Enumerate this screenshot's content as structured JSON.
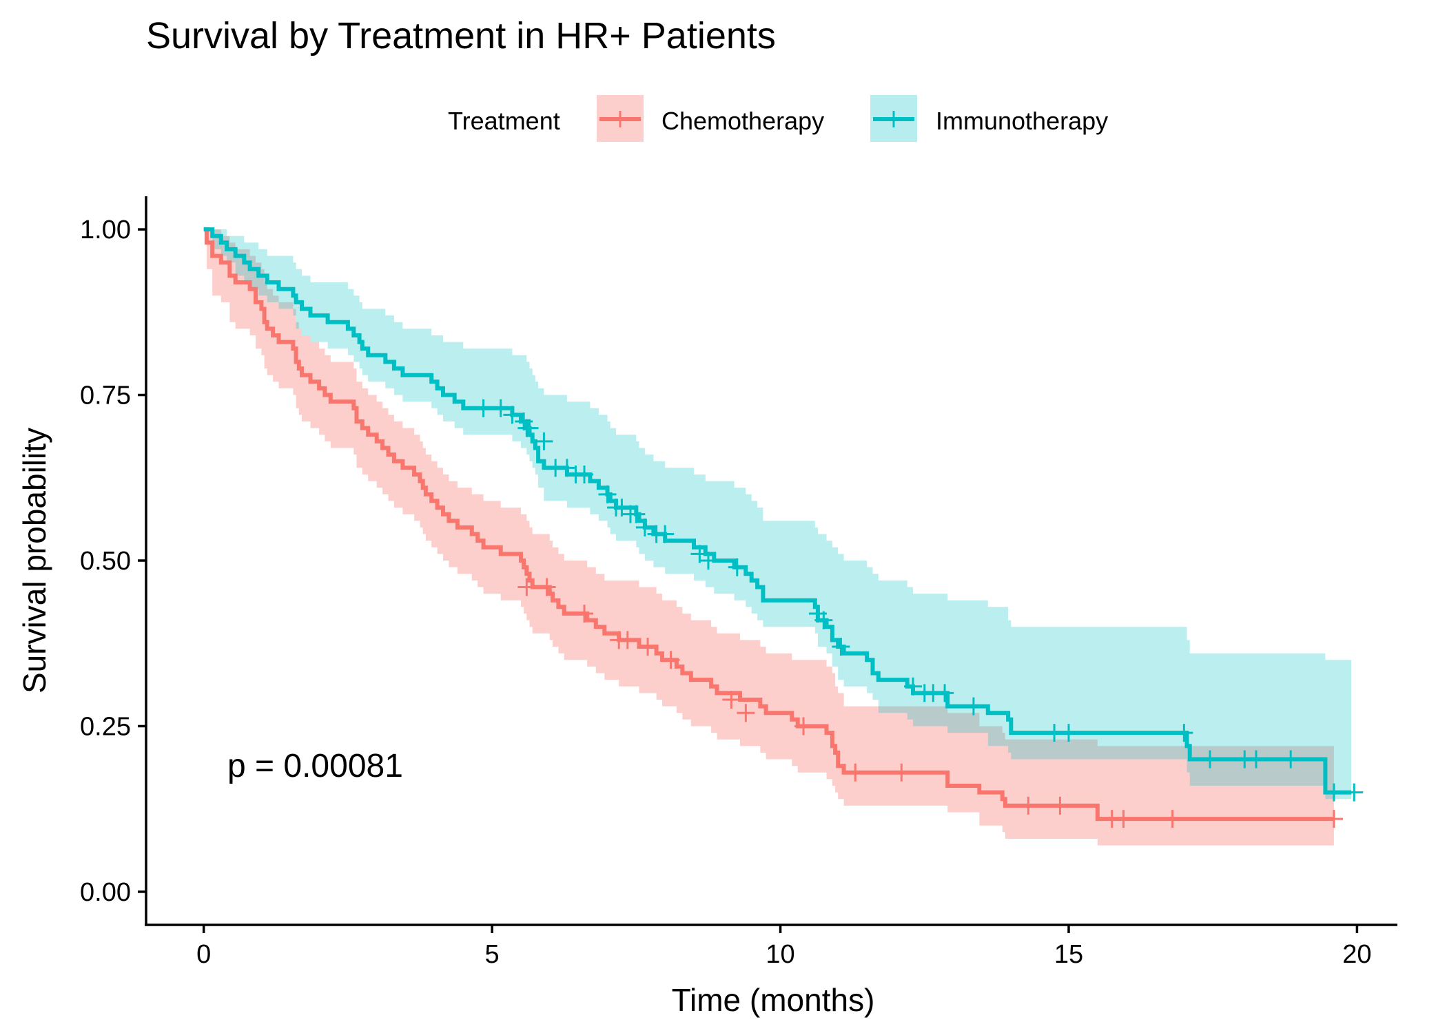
{
  "chart_data": {
    "type": "line",
    "title": "Survival by Treatment in HR+ Patients",
    "xlabel": "Time (months)",
    "ylabel": "Survival probability",
    "xlim": [
      -1,
      20.7
    ],
    "ylim": [
      -0.05,
      1.05
    ],
    "xticks": [
      0,
      5,
      10,
      15,
      20
    ],
    "yticks": [
      0.0,
      0.25,
      0.5,
      0.75,
      1.0
    ],
    "xtick_labels": [
      "0",
      "5",
      "10",
      "15",
      "20"
    ],
    "ytick_labels": [
      "0.00",
      "0.25",
      "0.50",
      "0.75",
      "1.00"
    ],
    "grid": false,
    "legend": {
      "title": "Treatment",
      "position": "top",
      "entries": [
        "Chemotherapy",
        "Immunotherapy"
      ]
    },
    "annotation": "p = 0.00081",
    "series": [
      {
        "name": "Chemotherapy",
        "color": "#F8766D",
        "band_color": "#F8766D",
        "steps": [
          [
            0.0,
            1.0
          ],
          [
            0.05,
            0.98
          ],
          [
            0.15,
            0.96
          ],
          [
            0.3,
            0.95
          ],
          [
            0.45,
            0.93
          ],
          [
            0.55,
            0.92
          ],
          [
            0.8,
            0.91
          ],
          [
            0.9,
            0.89
          ],
          [
            1.0,
            0.88
          ],
          [
            1.05,
            0.86
          ],
          [
            1.1,
            0.85
          ],
          [
            1.2,
            0.84
          ],
          [
            1.3,
            0.83
          ],
          [
            1.55,
            0.82
          ],
          [
            1.6,
            0.8
          ],
          [
            1.65,
            0.79
          ],
          [
            1.7,
            0.78
          ],
          [
            1.85,
            0.77
          ],
          [
            2.0,
            0.76
          ],
          [
            2.1,
            0.75
          ],
          [
            2.2,
            0.74
          ],
          [
            2.6,
            0.73
          ],
          [
            2.65,
            0.71
          ],
          [
            2.75,
            0.7
          ],
          [
            2.85,
            0.69
          ],
          [
            3.0,
            0.68
          ],
          [
            3.1,
            0.67
          ],
          [
            3.2,
            0.66
          ],
          [
            3.3,
            0.65
          ],
          [
            3.45,
            0.64
          ],
          [
            3.65,
            0.63
          ],
          [
            3.75,
            0.62
          ],
          [
            3.8,
            0.61
          ],
          [
            3.85,
            0.6
          ],
          [
            3.95,
            0.59
          ],
          [
            4.05,
            0.58
          ],
          [
            4.15,
            0.57
          ],
          [
            4.25,
            0.56
          ],
          [
            4.4,
            0.55
          ],
          [
            4.65,
            0.54
          ],
          [
            4.75,
            0.53
          ],
          [
            4.85,
            0.52
          ],
          [
            5.15,
            0.51
          ],
          [
            5.5,
            0.5
          ],
          [
            5.55,
            0.49
          ],
          [
            5.6,
            0.48
          ],
          [
            5.65,
            0.47
          ],
          [
            5.7,
            0.46
          ],
          [
            6.0,
            0.45
          ],
          [
            6.05,
            0.44
          ],
          [
            6.15,
            0.43
          ],
          [
            6.25,
            0.42
          ],
          [
            6.65,
            0.41
          ],
          [
            6.8,
            0.4
          ],
          [
            6.95,
            0.39
          ],
          [
            7.2,
            0.38
          ],
          [
            7.55,
            0.37
          ],
          [
            7.85,
            0.36
          ],
          [
            7.95,
            0.35
          ],
          [
            8.2,
            0.34
          ],
          [
            8.3,
            0.33
          ],
          [
            8.45,
            0.32
          ],
          [
            8.8,
            0.31
          ],
          [
            8.9,
            0.3
          ],
          [
            9.3,
            0.29
          ],
          [
            9.65,
            0.28
          ],
          [
            9.75,
            0.27
          ],
          [
            10.2,
            0.26
          ],
          [
            10.3,
            0.25
          ],
          [
            10.8,
            0.24
          ],
          [
            10.9,
            0.22
          ],
          [
            10.95,
            0.21
          ],
          [
            11.0,
            0.19
          ],
          [
            11.1,
            0.18
          ],
          [
            12.9,
            0.16
          ],
          [
            13.45,
            0.15
          ],
          [
            13.85,
            0.14
          ],
          [
            13.9,
            0.13
          ],
          [
            15.5,
            0.11
          ],
          [
            19.6,
            0.11
          ]
        ],
        "lower": [
          1.0,
          0.94,
          0.9,
          0.89,
          0.86,
          0.85,
          0.84,
          0.82,
          0.81,
          0.79,
          0.78,
          0.77,
          0.76,
          0.75,
          0.73,
          0.72,
          0.71,
          0.7,
          0.69,
          0.68,
          0.67,
          0.66,
          0.64,
          0.63,
          0.62,
          0.61,
          0.6,
          0.59,
          0.58,
          0.57,
          0.56,
          0.55,
          0.54,
          0.53,
          0.52,
          0.51,
          0.5,
          0.49,
          0.48,
          0.47,
          0.46,
          0.45,
          0.44,
          0.43,
          0.42,
          0.41,
          0.4,
          0.39,
          0.38,
          0.37,
          0.36,
          0.35,
          0.34,
          0.33,
          0.32,
          0.31,
          0.3,
          0.29,
          0.28,
          0.27,
          0.26,
          0.25,
          0.24,
          0.23,
          0.22,
          0.21,
          0.2,
          0.19,
          0.18,
          0.17,
          0.16,
          0.15,
          0.14,
          0.13,
          0.12,
          0.1,
          0.09,
          0.08,
          0.07,
          0.05,
          0.05
        ],
        "upper": [
          1.0,
          1.0,
          1.0,
          0.99,
          0.98,
          0.97,
          0.96,
          0.95,
          0.94,
          0.92,
          0.91,
          0.9,
          0.89,
          0.88,
          0.86,
          0.85,
          0.84,
          0.83,
          0.82,
          0.81,
          0.8,
          0.79,
          0.77,
          0.76,
          0.75,
          0.74,
          0.73,
          0.72,
          0.71,
          0.7,
          0.69,
          0.68,
          0.67,
          0.66,
          0.65,
          0.64,
          0.63,
          0.62,
          0.61,
          0.6,
          0.6,
          0.59,
          0.58,
          0.57,
          0.57,
          0.56,
          0.55,
          0.54,
          0.53,
          0.52,
          0.51,
          0.5,
          0.49,
          0.48,
          0.47,
          0.47,
          0.46,
          0.45,
          0.44,
          0.43,
          0.42,
          0.41,
          0.4,
          0.39,
          0.38,
          0.37,
          0.36,
          0.35,
          0.35,
          0.34,
          0.33,
          0.31,
          0.3,
          0.28,
          0.27,
          0.25,
          0.24,
          0.23,
          0.22,
          0.19,
          0.19
        ],
        "censored": [
          [
            5.6,
            0.46
          ],
          [
            5.95,
            0.46
          ],
          [
            6.6,
            0.42
          ],
          [
            7.2,
            0.38
          ],
          [
            7.35,
            0.38
          ],
          [
            7.7,
            0.37
          ],
          [
            8.1,
            0.35
          ],
          [
            9.15,
            0.29
          ],
          [
            9.4,
            0.27
          ],
          [
            10.4,
            0.25
          ],
          [
            11.3,
            0.18
          ],
          [
            12.1,
            0.18
          ],
          [
            14.3,
            0.13
          ],
          [
            14.85,
            0.13
          ],
          [
            15.75,
            0.11
          ],
          [
            15.95,
            0.11
          ],
          [
            16.8,
            0.11
          ],
          [
            19.6,
            0.11
          ]
        ]
      },
      {
        "name": "Immunotherapy",
        "color": "#00BFC4",
        "band_color": "#00BFC4",
        "steps": [
          [
            0.0,
            1.0
          ],
          [
            0.15,
            0.99
          ],
          [
            0.3,
            0.98
          ],
          [
            0.4,
            0.97
          ],
          [
            0.55,
            0.96
          ],
          [
            0.7,
            0.95
          ],
          [
            0.8,
            0.94
          ],
          [
            0.95,
            0.93
          ],
          [
            1.1,
            0.92
          ],
          [
            1.3,
            0.91
          ],
          [
            1.55,
            0.9
          ],
          [
            1.6,
            0.89
          ],
          [
            1.7,
            0.88
          ],
          [
            1.85,
            0.87
          ],
          [
            2.15,
            0.86
          ],
          [
            2.5,
            0.85
          ],
          [
            2.6,
            0.84
          ],
          [
            2.7,
            0.83
          ],
          [
            2.75,
            0.82
          ],
          [
            2.85,
            0.81
          ],
          [
            3.15,
            0.8
          ],
          [
            3.3,
            0.79
          ],
          [
            3.45,
            0.78
          ],
          [
            3.95,
            0.77
          ],
          [
            4.05,
            0.76
          ],
          [
            4.15,
            0.75
          ],
          [
            4.35,
            0.74
          ],
          [
            4.5,
            0.73
          ],
          [
            5.35,
            0.72
          ],
          [
            5.5,
            0.71
          ],
          [
            5.6,
            0.7
          ],
          [
            5.65,
            0.69
          ],
          [
            5.7,
            0.68
          ],
          [
            5.75,
            0.67
          ],
          [
            5.8,
            0.65
          ],
          [
            5.9,
            0.64
          ],
          [
            6.3,
            0.63
          ],
          [
            6.7,
            0.62
          ],
          [
            6.85,
            0.61
          ],
          [
            7.0,
            0.6
          ],
          [
            7.05,
            0.59
          ],
          [
            7.15,
            0.58
          ],
          [
            7.5,
            0.57
          ],
          [
            7.55,
            0.56
          ],
          [
            7.65,
            0.55
          ],
          [
            7.8,
            0.54
          ],
          [
            8.0,
            0.53
          ],
          [
            8.5,
            0.52
          ],
          [
            8.7,
            0.51
          ],
          [
            8.85,
            0.5
          ],
          [
            9.2,
            0.49
          ],
          [
            9.4,
            0.48
          ],
          [
            9.5,
            0.47
          ],
          [
            9.6,
            0.46
          ],
          [
            9.7,
            0.44
          ],
          [
            10.6,
            0.43
          ],
          [
            10.65,
            0.41
          ],
          [
            10.8,
            0.4
          ],
          [
            10.9,
            0.38
          ],
          [
            11.0,
            0.37
          ],
          [
            11.1,
            0.36
          ],
          [
            11.5,
            0.35
          ],
          [
            11.6,
            0.33
          ],
          [
            11.7,
            0.32
          ],
          [
            12.2,
            0.31
          ],
          [
            12.3,
            0.3
          ],
          [
            12.9,
            0.28
          ],
          [
            13.6,
            0.27
          ],
          [
            13.95,
            0.26
          ],
          [
            14.0,
            0.24
          ],
          [
            17.05,
            0.22
          ],
          [
            17.1,
            0.2
          ],
          [
            19.45,
            0.15
          ],
          [
            19.9,
            0.15
          ]
        ],
        "lower": [
          1.0,
          0.97,
          0.96,
          0.95,
          0.93,
          0.92,
          0.91,
          0.9,
          0.89,
          0.88,
          0.87,
          0.85,
          0.84,
          0.83,
          0.82,
          0.81,
          0.8,
          0.79,
          0.78,
          0.77,
          0.76,
          0.75,
          0.74,
          0.73,
          0.72,
          0.71,
          0.7,
          0.69,
          0.68,
          0.67,
          0.66,
          0.65,
          0.64,
          0.63,
          0.61,
          0.59,
          0.58,
          0.57,
          0.56,
          0.55,
          0.54,
          0.53,
          0.52,
          0.51,
          0.5,
          0.49,
          0.48,
          0.47,
          0.46,
          0.45,
          0.44,
          0.43,
          0.42,
          0.41,
          0.4,
          0.39,
          0.37,
          0.36,
          0.34,
          0.32,
          0.31,
          0.3,
          0.29,
          0.27,
          0.26,
          0.25,
          0.24,
          0.22,
          0.21,
          0.2,
          0.18,
          0.16,
          0.14,
          0.07,
          0.07
        ],
        "upper": [
          1.0,
          1.0,
          1.0,
          0.99,
          0.99,
          0.98,
          0.98,
          0.97,
          0.96,
          0.96,
          0.95,
          0.94,
          0.93,
          0.92,
          0.92,
          0.91,
          0.9,
          0.89,
          0.88,
          0.88,
          0.87,
          0.86,
          0.85,
          0.84,
          0.84,
          0.83,
          0.83,
          0.82,
          0.81,
          0.81,
          0.8,
          0.79,
          0.78,
          0.77,
          0.76,
          0.75,
          0.74,
          0.73,
          0.72,
          0.71,
          0.7,
          0.69,
          0.68,
          0.67,
          0.66,
          0.65,
          0.64,
          0.63,
          0.62,
          0.62,
          0.61,
          0.6,
          0.59,
          0.58,
          0.56,
          0.55,
          0.54,
          0.53,
          0.52,
          0.51,
          0.5,
          0.49,
          0.48,
          0.47,
          0.46,
          0.45,
          0.44,
          0.43,
          0.41,
          0.4,
          0.38,
          0.36,
          0.35,
          0.31,
          0.31
        ],
        "censored": [
          [
            4.85,
            0.73
          ],
          [
            5.15,
            0.73
          ],
          [
            5.35,
            0.72
          ],
          [
            5.55,
            0.71
          ],
          [
            5.6,
            0.7
          ],
          [
            5.65,
            0.7
          ],
          [
            5.9,
            0.68
          ],
          [
            6.1,
            0.64
          ],
          [
            6.3,
            0.64
          ],
          [
            6.45,
            0.63
          ],
          [
            6.6,
            0.63
          ],
          [
            7.0,
            0.6
          ],
          [
            7.15,
            0.58
          ],
          [
            7.25,
            0.58
          ],
          [
            7.4,
            0.57
          ],
          [
            7.5,
            0.57
          ],
          [
            7.65,
            0.55
          ],
          [
            7.85,
            0.54
          ],
          [
            8.0,
            0.54
          ],
          [
            8.6,
            0.51
          ],
          [
            8.75,
            0.5
          ],
          [
            9.25,
            0.49
          ],
          [
            10.65,
            0.42
          ],
          [
            10.75,
            0.41
          ],
          [
            11.05,
            0.37
          ],
          [
            12.3,
            0.31
          ],
          [
            12.5,
            0.3
          ],
          [
            12.65,
            0.3
          ],
          [
            12.85,
            0.3
          ],
          [
            13.35,
            0.28
          ],
          [
            14.75,
            0.24
          ],
          [
            15.0,
            0.24
          ],
          [
            17.0,
            0.24
          ],
          [
            17.45,
            0.2
          ],
          [
            18.05,
            0.2
          ],
          [
            18.25,
            0.2
          ],
          [
            18.85,
            0.2
          ],
          [
            19.6,
            0.15
          ],
          [
            19.95,
            0.15
          ]
        ]
      }
    ]
  }
}
